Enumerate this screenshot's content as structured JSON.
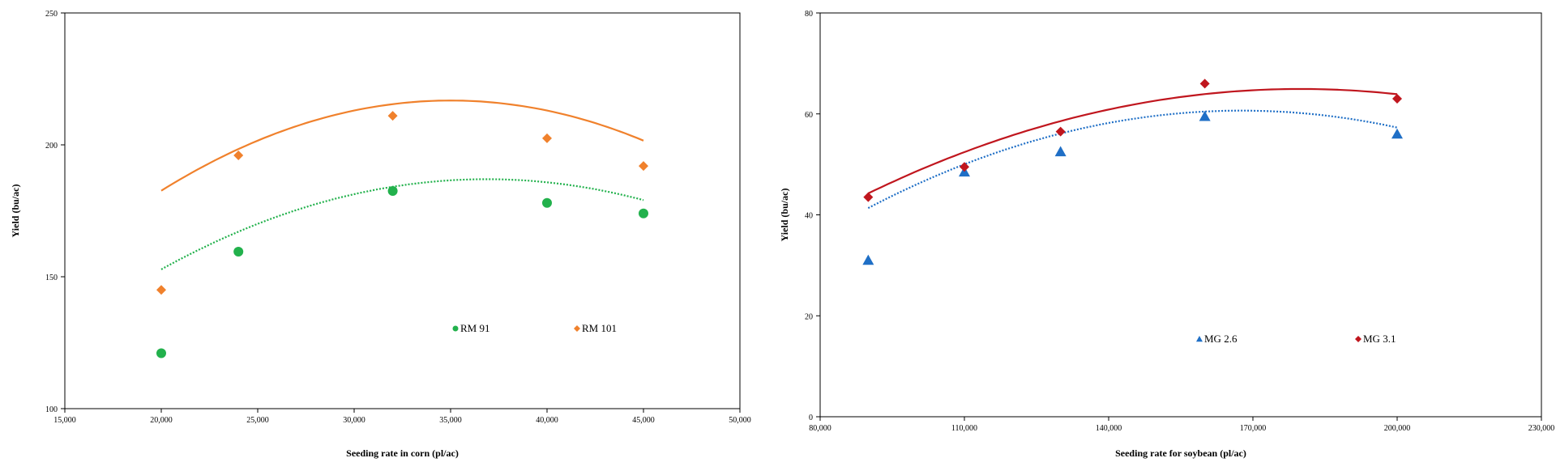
{
  "chart_data": [
    {
      "type": "scatter",
      "title": "",
      "xlabel": "Seeding rate in corn (pl/ac)",
      "ylabel": "Yield (bu/ac)",
      "xlim": [
        15000,
        50000
      ],
      "ylim": [
        100,
        250
      ],
      "xticks": [
        15000,
        20000,
        25000,
        30000,
        35000,
        40000,
        45000,
        50000
      ],
      "xtick_labels": [
        "15,000",
        "20,000",
        "25,000",
        "30,000",
        "35,000",
        "40,000",
        "45,000",
        "50,000"
      ],
      "yticks": [
        100,
        150,
        200,
        250
      ],
      "ytick_labels": [
        "100",
        "150",
        "200",
        "250"
      ],
      "legend_position": "bottom-right",
      "series": [
        {
          "name": "RM 91",
          "marker": "circle",
          "color": "#22b14c",
          "x": [
            20000,
            24000,
            32000,
            40000,
            45000
          ],
          "y": [
            121,
            159.5,
            182.5,
            178,
            174
          ],
          "trendline": {
            "style": "dotted",
            "x_range": [
              20000,
              45000
            ],
            "coef": [
              -1.2e-07,
              0.00885,
              23.8
            ]
          }
        },
        {
          "name": "RM 101",
          "marker": "diamond",
          "color": "#f0812c",
          "x": [
            20000,
            24000,
            32000,
            40000,
            45000
          ],
          "y": [
            145,
            196,
            211,
            202.5,
            192
          ],
          "trendline": {
            "style": "solid",
            "x_range": [
              20000,
              45000
            ],
            "coef": [
              -1.52e-07,
              0.01064,
              30.6
            ]
          }
        }
      ]
    },
    {
      "type": "scatter",
      "title": "",
      "xlabel": "Seeding rate for soybean (pl/ac)",
      "ylabel": "Yield (bu/ac)",
      "xlim": [
        80000,
        230000
      ],
      "ylim": [
        0,
        80
      ],
      "xticks": [
        80000,
        110000,
        140000,
        170000,
        200000,
        230000
      ],
      "xtick_labels": [
        "80,000",
        "110,000",
        "140,000",
        "170,000",
        "200,000",
        "230,000"
      ],
      "yticks": [
        0,
        20,
        40,
        60,
        80
      ],
      "ytick_labels": [
        "0",
        "20",
        "40",
        "60",
        "80"
      ],
      "legend_position": "bottom-right",
      "series": [
        {
          "name": "MG 2.6",
          "marker": "triangle",
          "color": "#1f6fc6",
          "x": [
            90000,
            110000,
            130000,
            160000,
            200000
          ],
          "y": [
            31,
            48.5,
            52.5,
            59.5,
            56
          ],
          "trendline": {
            "style": "dotted",
            "x_range": [
              90000,
              200000
            ],
            "coef": [
              -3.2e-09,
              0.001073,
              -29.3
            ]
          }
        },
        {
          "name": "MG 3.1",
          "marker": "diamond",
          "color": "#c0161e",
          "x": [
            90000,
            110000,
            130000,
            160000,
            200000
          ],
          "y": [
            43.5,
            49.5,
            56.5,
            66,
            63
          ],
          "trendline": {
            "style": "solid",
            "x_range": [
              90000,
              200000
            ],
            "coef": [
              -2.56e-09,
              0.000921,
              -17.9
            ]
          }
        }
      ]
    }
  ]
}
